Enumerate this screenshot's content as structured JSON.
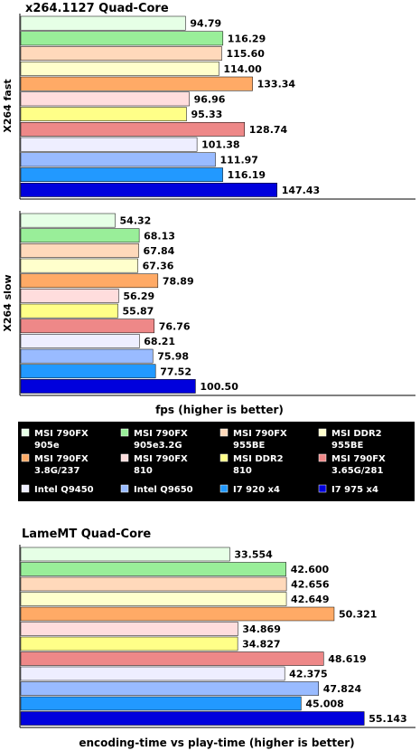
{
  "chart_data": [
    {
      "type": "bar",
      "orientation": "horizontal",
      "title": "x264.1127 Quad-Core",
      "ylabel": "X264 fast",
      "xlabel": "",
      "series_names": [
        "MSI 790FX 905e",
        "MSI 790FX 905e3.2G",
        "MSI 790FX 955BE",
        "MSI DDR2 955BE",
        "MSI 790FX 3.8G/237",
        "MSI 790FX 810",
        "MSI DDR2 810",
        "MSI 790FX 3.65G/281",
        "Intel Q9450",
        "Intel Q9650",
        "I7 920 x4",
        "I7 975 x4"
      ],
      "values": [
        94.79,
        116.29,
        115.6,
        114.0,
        133.34,
        96.96,
        95.33,
        128.74,
        101.38,
        111.97,
        116.19,
        147.43
      ],
      "labels": [
        "94.79",
        "116.29",
        "115.60",
        "114.00",
        "133.34",
        "96.96",
        "95.33",
        "128.74",
        "101.38",
        "111.97",
        "116.19",
        "147.43"
      ],
      "xlim": [
        0,
        170
      ]
    },
    {
      "type": "bar",
      "orientation": "horizontal",
      "title": "",
      "ylabel": "X264 slow",
      "xlabel": "fps (higher is better)",
      "series_names": [
        "MSI 790FX 905e",
        "MSI 790FX 905e3.2G",
        "MSI 790FX 955BE",
        "MSI DDR2 955BE",
        "MSI 790FX 3.8G/237",
        "MSI 790FX 810",
        "MSI DDR2 810",
        "MSI 790FX 3.65G/281",
        "Intel Q9450",
        "Intel Q9650",
        "I7 920 x4",
        "I7 975 x4"
      ],
      "values": [
        54.32,
        68.13,
        67.84,
        67.36,
        78.89,
        56.29,
        55.87,
        76.76,
        68.21,
        75.98,
        77.52,
        100.5
      ],
      "labels": [
        "54.32",
        "68.13",
        "67.84",
        "67.36",
        "78.89",
        "56.29",
        "55.87",
        "76.76",
        "68.21",
        "75.98",
        "77.52",
        "100.50"
      ],
      "xlim": [
        0,
        170
      ]
    },
    {
      "type": "bar",
      "orientation": "horizontal",
      "title": "LameMT Quad-Core",
      "ylabel": "",
      "xlabel": "encoding-time vs play-time (higher is better)",
      "series_names": [
        "MSI 790FX 905e",
        "MSI 790FX 905e3.2G",
        "MSI 790FX 955BE",
        "MSI DDR2 955BE",
        "MSI 790FX 3.8G/237",
        "MSI 790FX 810",
        "MSI DDR2 810",
        "MSI 790FX 3.65G/281",
        "Intel Q9450",
        "Intel Q9650",
        "I7 920 x4",
        "I7 975 x4"
      ],
      "values": [
        33.554,
        42.6,
        42.656,
        42.649,
        50.321,
        34.869,
        34.827,
        48.619,
        42.375,
        47.824,
        45.008,
        55.143
      ],
      "labels": [
        "33.554",
        "42.600",
        "42.656",
        "42.649",
        "50.321",
        "34.869",
        "34.827",
        "48.619",
        "42.375",
        "47.824",
        "45.008",
        "55.143"
      ],
      "xlim": [
        0,
        59.3
      ]
    }
  ],
  "legend": {
    "placement": "between charts",
    "items": [
      {
        "line1": "MSI 790FX",
        "line2": "905e",
        "color": "#e6ffe6"
      },
      {
        "line1": "MSI 790FX",
        "line2": "905e3.2G",
        "color": "#99ee99"
      },
      {
        "line1": "MSI 790FX",
        "line2": "955BE",
        "color": "#ffd9bb"
      },
      {
        "line1": "MSI DDR2",
        "line2": "955BE",
        "color": "#ffffcc"
      },
      {
        "line1": "MSI 790FX",
        "line2": "3.8G/237",
        "color": "#ffaa66"
      },
      {
        "line1": "MSI 790FX",
        "line2": "810",
        "color": "#ffdddd"
      },
      {
        "line1": "MSI DDR2",
        "line2": "810",
        "color": "#ffff88"
      },
      {
        "line1": "MSI 790FX",
        "line2": "3.65G/281",
        "color": "#ee8888"
      },
      {
        "line1": "Intel Q9450",
        "line2": "",
        "color": "#eeeeff"
      },
      {
        "line1": "Intel Q9650",
        "line2": "",
        "color": "#99bbff"
      },
      {
        "line1": "I7 920 x4",
        "line2": "",
        "color": "#2299ff"
      },
      {
        "line1": "I7 975 x4",
        "line2": "",
        "color": "#0000dd"
      }
    ]
  }
}
